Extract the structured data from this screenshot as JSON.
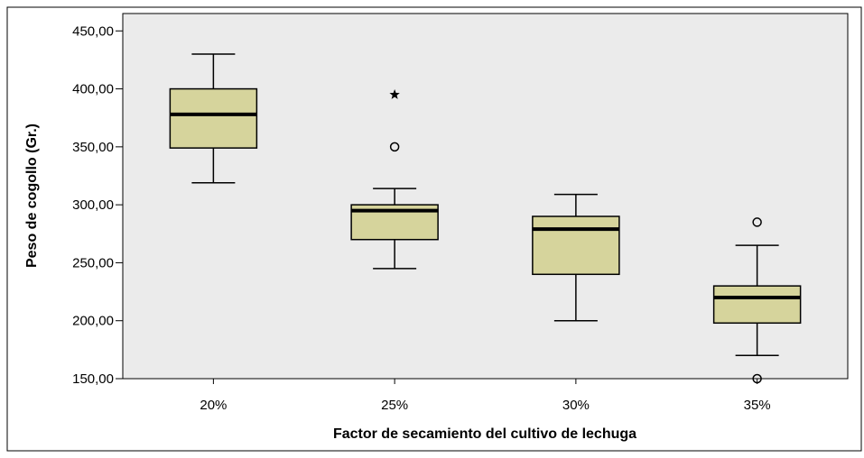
{
  "chart_data": {
    "type": "box",
    "title": "",
    "xlabel": "Factor de secamiento del cultivo de lechuga",
    "ylabel": "Peso de cogollo (Gr.)",
    "ylim": [
      150,
      465
    ],
    "yticks": [
      "150,00",
      "200,00",
      "250,00",
      "300,00",
      "350,00",
      "400,00",
      "450,00"
    ],
    "ytick_values": [
      150,
      200,
      250,
      300,
      350,
      400,
      450
    ],
    "categories": [
      "20%",
      "25%",
      "30%",
      "35%"
    ],
    "boxes": [
      {
        "category": "20%",
        "whisker_low": 319,
        "q1": 349,
        "median": 378,
        "q3": 400,
        "whisker_high": 430,
        "outliers": [],
        "extremes": []
      },
      {
        "category": "25%",
        "whisker_low": 245,
        "q1": 270,
        "median": 295,
        "q3": 300,
        "whisker_high": 314,
        "outliers": [
          350
        ],
        "extremes": [
          395
        ]
      },
      {
        "category": "30%",
        "whisker_low": 200,
        "q1": 240,
        "median": 279,
        "q3": 290,
        "whisker_high": 309,
        "outliers": [],
        "extremes": []
      },
      {
        "category": "35%",
        "whisker_low": 170,
        "q1": 198,
        "median": 220,
        "q3": 230,
        "whisker_high": 265,
        "outliers": [
          285,
          150
        ],
        "extremes": []
      }
    ],
    "colors": {
      "plot_background": "#ebebeb",
      "box_fill": "#d6d49c",
      "line": "#000000"
    },
    "grid": false,
    "legend": "none"
  }
}
